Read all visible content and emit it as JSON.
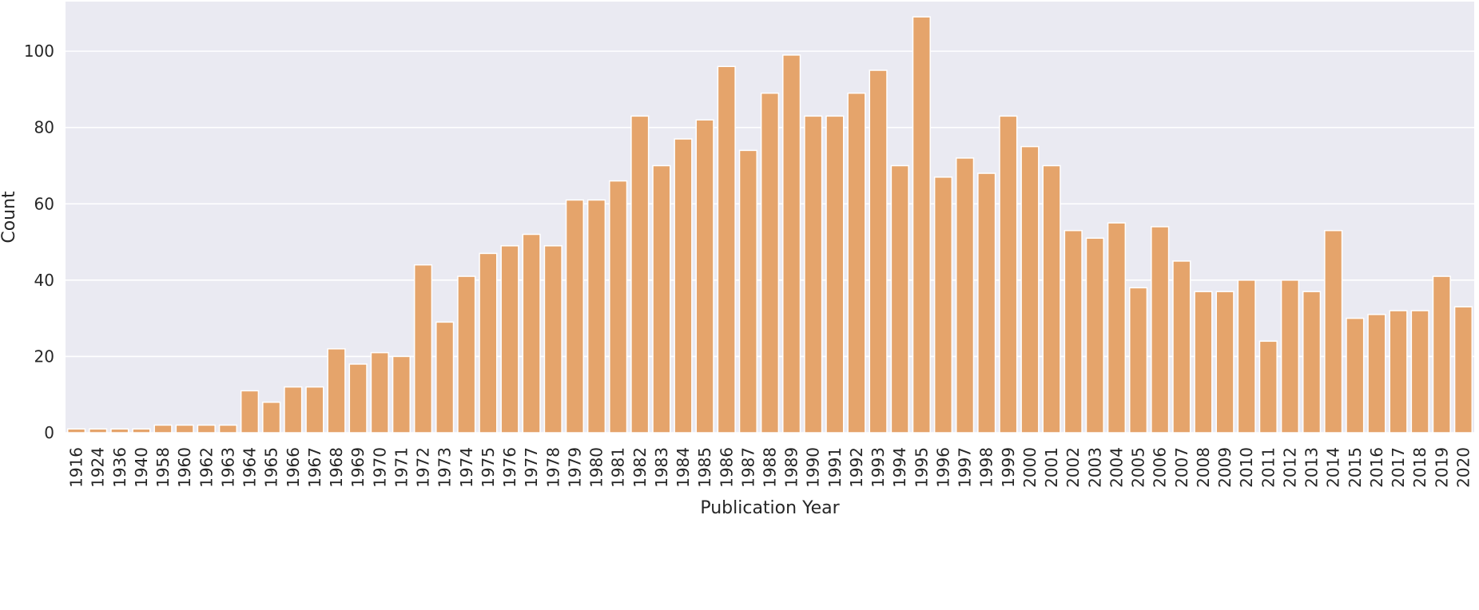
{
  "chart_data": {
    "type": "bar",
    "xlabel": "Publication Year",
    "ylabel": "Count",
    "ylim": [
      0,
      113
    ],
    "yticks": [
      0,
      20,
      40,
      60,
      80,
      100
    ],
    "grid": true,
    "colors": {
      "bar": "#E5A46B",
      "bar_edge": "#ffffff",
      "background": "#EAEAF2",
      "grid": "#ffffff"
    },
    "categories": [
      "1916",
      "1924",
      "1936",
      "1940",
      "1958",
      "1960",
      "1962",
      "1963",
      "1964",
      "1965",
      "1966",
      "1967",
      "1968",
      "1969",
      "1970",
      "1971",
      "1972",
      "1973",
      "1974",
      "1975",
      "1976",
      "1977",
      "1978",
      "1979",
      "1980",
      "1981",
      "1982",
      "1983",
      "1984",
      "1985",
      "1986",
      "1987",
      "1988",
      "1989",
      "1990",
      "1991",
      "1992",
      "1993",
      "1994",
      "1995",
      "1996",
      "1997",
      "1998",
      "1999",
      "2000",
      "2001",
      "2002",
      "2003",
      "2004",
      "2005",
      "2006",
      "2007",
      "2008",
      "2009",
      "2010",
      "2011",
      "2012",
      "2013",
      "2014",
      "2015",
      "2016",
      "2017",
      "2018",
      "2019",
      "2020"
    ],
    "values": [
      1,
      1,
      1,
      1,
      2,
      2,
      2,
      2,
      11,
      8,
      12,
      12,
      22,
      18,
      21,
      20,
      44,
      29,
      41,
      47,
      49,
      52,
      49,
      61,
      61,
      66,
      83,
      70,
      77,
      82,
      96,
      74,
      89,
      99,
      83,
      83,
      89,
      95,
      70,
      109,
      67,
      72,
      68,
      83,
      75,
      70,
      53,
      51,
      55,
      38,
      54,
      45,
      37,
      37,
      40,
      24,
      40,
      37,
      53,
      30,
      31,
      32,
      32,
      41,
      33
    ]
  }
}
